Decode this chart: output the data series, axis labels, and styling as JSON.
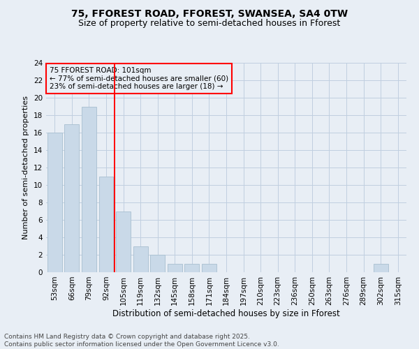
{
  "title": "75, FFOREST ROAD, FFOREST, SWANSEA, SA4 0TW",
  "subtitle": "Size of property relative to semi-detached houses in Fforest",
  "xlabel": "Distribution of semi-detached houses by size in Fforest",
  "ylabel": "Number of semi-detached properties",
  "categories": [
    "53sqm",
    "66sqm",
    "79sqm",
    "92sqm",
    "105sqm",
    "119sqm",
    "132sqm",
    "145sqm",
    "158sqm",
    "171sqm",
    "184sqm",
    "197sqm",
    "210sqm",
    "223sqm",
    "236sqm",
    "250sqm",
    "263sqm",
    "276sqm",
    "289sqm",
    "302sqm",
    "315sqm"
  ],
  "values": [
    16,
    17,
    19,
    11,
    7,
    3,
    2,
    1,
    1,
    1,
    0,
    0,
    0,
    0,
    0,
    0,
    0,
    0,
    0,
    1,
    0
  ],
  "bar_color": "#c9d9e8",
  "bar_edge_color": "#a8bfd0",
  "grid_color": "#c0cfe0",
  "background_color": "#e8eef5",
  "annotation_box_text": "75 FFOREST ROAD: 101sqm\n← 77% of semi-detached houses are smaller (60)\n23% of semi-detached houses are larger (18) →",
  "property_line_color": "red",
  "ylim": [
    0,
    24
  ],
  "yticks": [
    0,
    2,
    4,
    6,
    8,
    10,
    12,
    14,
    16,
    18,
    20,
    22,
    24
  ],
  "footer_text": "Contains HM Land Registry data © Crown copyright and database right 2025.\nContains public sector information licensed under the Open Government Licence v3.0.",
  "title_fontsize": 10,
  "subtitle_fontsize": 9,
  "ylabel_fontsize": 8,
  "xlabel_fontsize": 8.5,
  "tick_fontsize": 7.5,
  "annotation_fontsize": 7.5,
  "footer_fontsize": 6.5
}
